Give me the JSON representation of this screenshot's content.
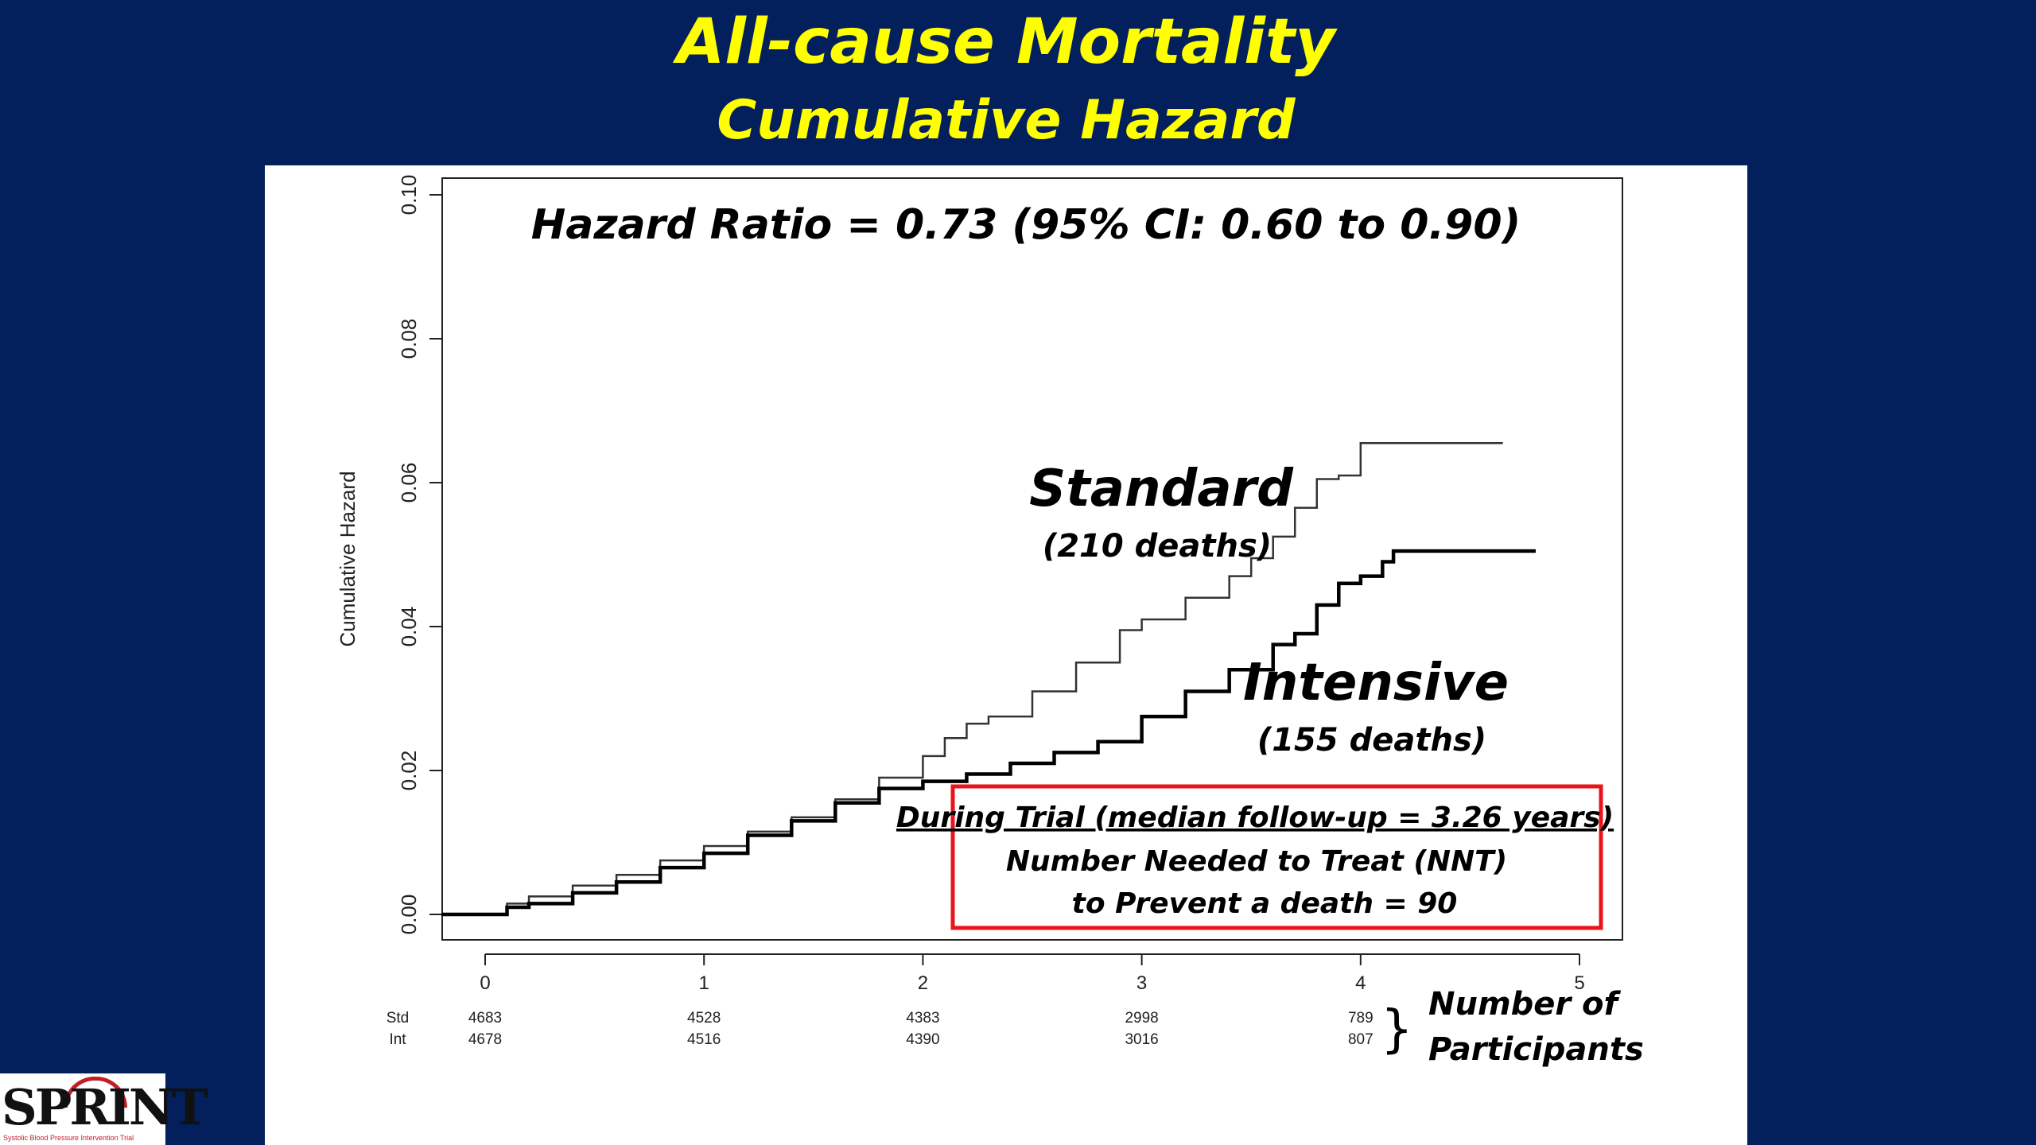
{
  "title": {
    "line1": "All-cause Mortality",
    "line2": "Cumulative Hazard"
  },
  "logo": {
    "text": "SPRINT",
    "tagline": "Systolic Blood Pressure Intervention Trial"
  },
  "chart_data": {
    "type": "line",
    "ylabel": "Cumulative Hazard",
    "xlim": [
      0,
      5
    ],
    "ylim": [
      0,
      0.1
    ],
    "x_ticks": [
      "0",
      "1",
      "2",
      "3",
      "4",
      "5"
    ],
    "y_ticks": [
      "0.00",
      "0.02",
      "0.04",
      "0.06",
      "0.08",
      "0.10"
    ],
    "grid": false,
    "annotation_hr": "Hazard Ratio = 0.73 (95% CI: 0.60 to 0.90)",
    "series": [
      {
        "name": "Standard",
        "sublabel": "(210 deaths)",
        "stroke": "#333333",
        "x": [
          -0.2,
          0.05,
          0.1,
          0.2,
          0.4,
          0.6,
          0.8,
          1.0,
          1.2,
          1.4,
          1.6,
          1.8,
          2.0,
          2.1,
          2.2,
          2.3,
          2.5,
          2.7,
          2.9,
          3.0,
          3.2,
          3.4,
          3.5,
          3.6,
          3.7,
          3.8,
          3.9,
          4.0,
          4.65
        ],
        "y": [
          0,
          0,
          0.0015,
          0.0025,
          0.004,
          0.0055,
          0.0075,
          0.0095,
          0.0115,
          0.0135,
          0.016,
          0.019,
          0.022,
          0.0245,
          0.0265,
          0.0275,
          0.031,
          0.035,
          0.0395,
          0.041,
          0.044,
          0.047,
          0.0495,
          0.0525,
          0.0565,
          0.0605,
          0.061,
          0.0655,
          0.0655
        ]
      },
      {
        "name": "Intensive",
        "sublabel": "(155 deaths)",
        "stroke": "#000000",
        "x": [
          -0.2,
          0.05,
          0.1,
          0.2,
          0.4,
          0.6,
          0.8,
          1.0,
          1.2,
          1.4,
          1.6,
          1.8,
          2.0,
          2.2,
          2.4,
          2.6,
          2.8,
          3.0,
          3.2,
          3.4,
          3.6,
          3.7,
          3.8,
          3.9,
          4.0,
          4.1,
          4.15,
          4.8
        ],
        "y": [
          0,
          0,
          0.001,
          0.0015,
          0.003,
          0.0045,
          0.0065,
          0.0085,
          0.011,
          0.013,
          0.0155,
          0.0175,
          0.0185,
          0.0195,
          0.021,
          0.0225,
          0.024,
          0.0275,
          0.031,
          0.034,
          0.0375,
          0.039,
          0.043,
          0.046,
          0.047,
          0.049,
          0.0505,
          0.0505
        ]
      }
    ],
    "risk_table": {
      "row_labels": [
        "Std",
        "Int"
      ],
      "std": [
        "4683",
        "4528",
        "4383",
        "2998",
        "789"
      ],
      "int": [
        "4678",
        "4516",
        "4390",
        "3016",
        "807"
      ],
      "caption_line1": "Number of",
      "caption_line2": "Participants",
      "brace": "}"
    },
    "nnt_box": {
      "line1": "During Trial (median follow-up = 3.26 years)",
      "line2": "Number Needed to Treat (NNT)",
      "line3": "to Prevent a death = 90",
      "border_color": "#e8141b"
    }
  }
}
